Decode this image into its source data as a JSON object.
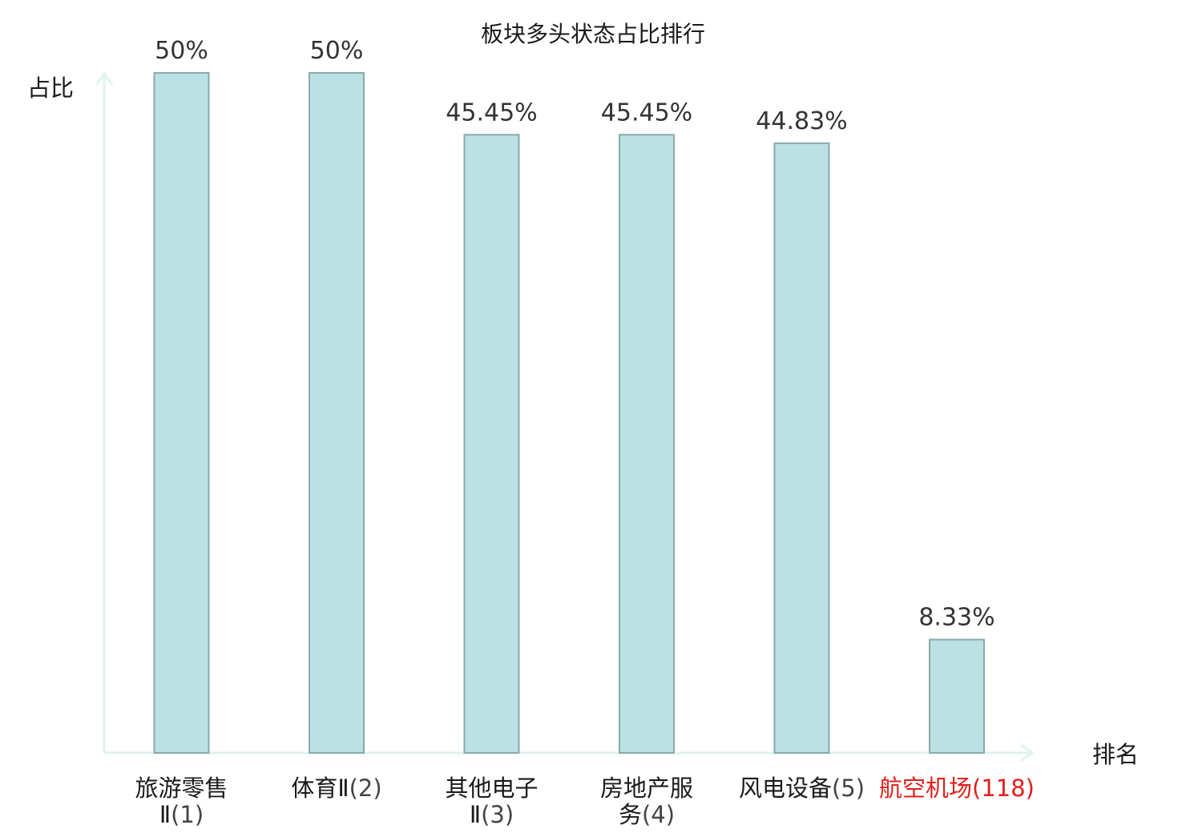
{
  "chart_data": {
    "type": "bar",
    "title": "板块多头状态占比排行",
    "xlabel": "排名",
    "ylabel": "占比",
    "ylim": [
      0,
      50
    ],
    "grid": false,
    "categories": [
      {
        "name_lines": [
          "旅游零售",
          "Ⅱ"
        ],
        "rank": "(1)",
        "highlight": false
      },
      {
        "name_lines": [
          "体育Ⅱ"
        ],
        "rank": "(2)",
        "highlight": false
      },
      {
        "name_lines": [
          "其他电子",
          "Ⅱ"
        ],
        "rank": "(3)",
        "highlight": false
      },
      {
        "name_lines": [
          "房地产服",
          "务"
        ],
        "rank": "(4)",
        "highlight": false
      },
      {
        "name_lines": [
          "风电设备"
        ],
        "rank": "(5)",
        "highlight": false
      },
      {
        "name_lines": [
          "航空机场"
        ],
        "rank": "(118)",
        "highlight": true
      }
    ],
    "values": [
      50,
      50,
      45.45,
      45.45,
      44.83,
      8.33
    ],
    "value_labels": [
      "50%",
      "50%",
      "45.45%",
      "45.45%",
      "44.83%",
      "8.33%"
    ],
    "colors": {
      "bar_fill": "#bce1e3",
      "bar_stroke": "#8aa9ab",
      "axis": "#dff2ef",
      "highlight_text": "#e0201c"
    }
  }
}
